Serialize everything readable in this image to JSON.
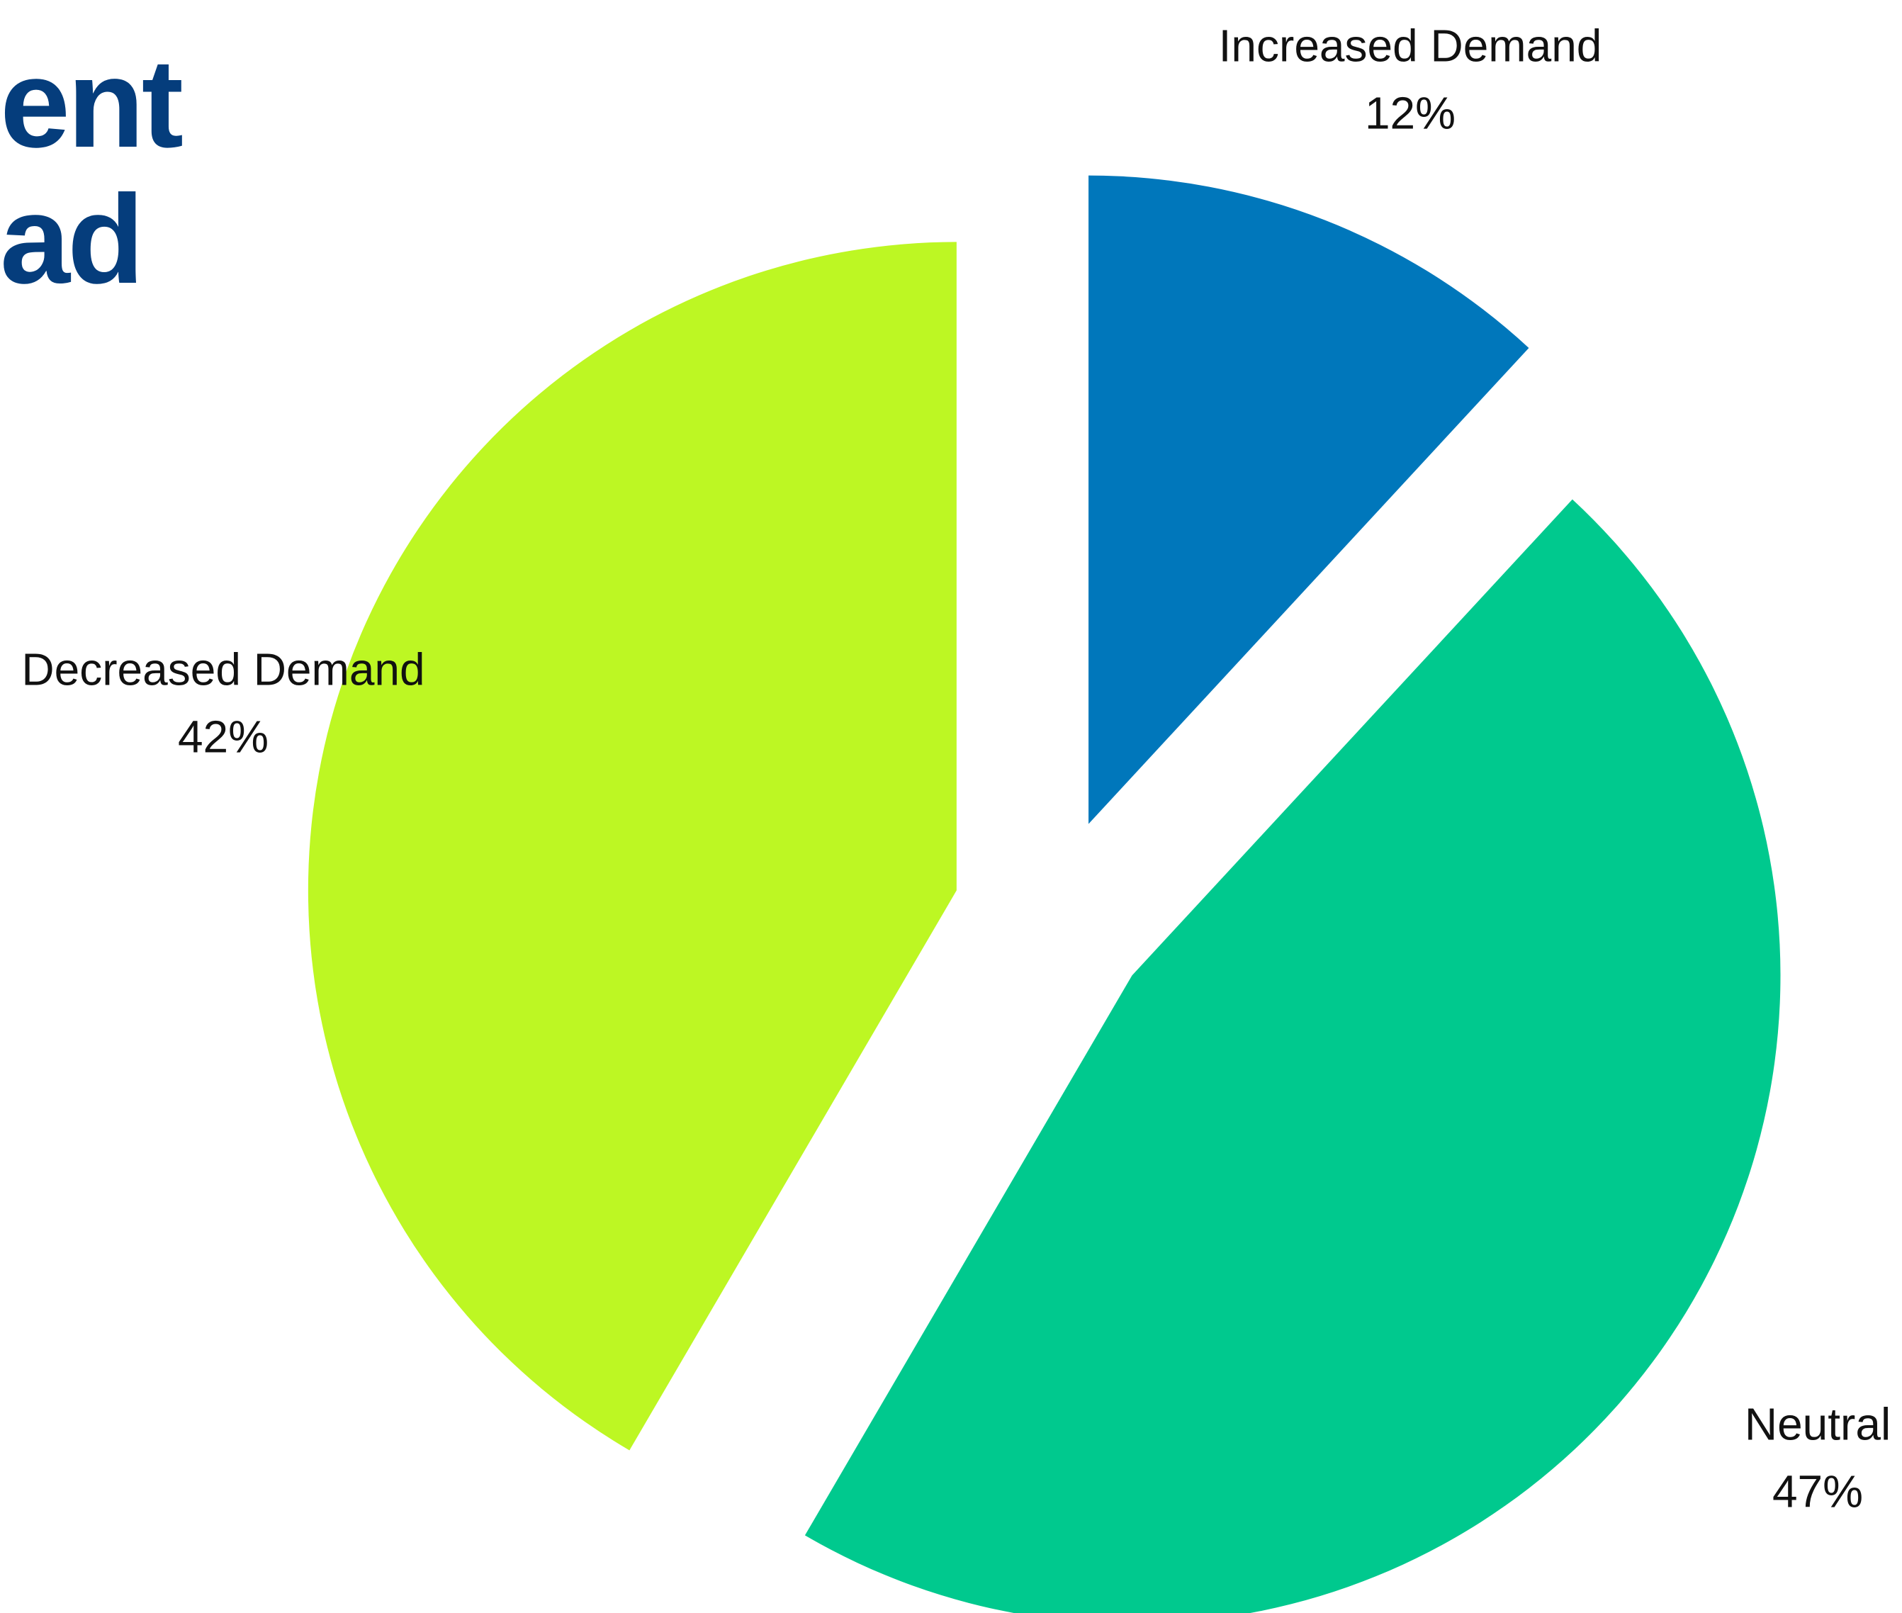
{
  "title_fragment": {
    "line1": "ent",
    "line2": "ad"
  },
  "chart_data": {
    "type": "pie",
    "exploded": true,
    "slices": [
      {
        "label": "Increased Demand",
        "value": 12,
        "display": "12%",
        "color": "#0077bb"
      },
      {
        "label": "Neutral",
        "value": 47,
        "display": "47%",
        "color": "#00c98e"
      },
      {
        "label": "Decreased Demand",
        "value": 42,
        "display": "42%",
        "color": "#bdf723"
      }
    ],
    "start_angle_deg": 0,
    "direction": "clockwise"
  }
}
